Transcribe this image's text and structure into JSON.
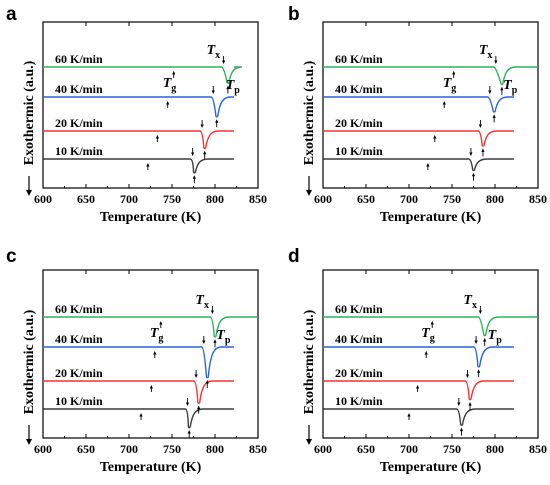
{
  "chart_data": [
    {
      "panel": "a",
      "type": "line",
      "xlabel": "Temperature (K)",
      "ylabel": "Exothermic (a.u.)",
      "xlim": [
        600,
        850
      ],
      "x_ticks": [
        600,
        650,
        700,
        750,
        800,
        850
      ],
      "series": [
        {
          "name": "10 K/min",
          "color": "#3a3a3a",
          "x_range": [
            600,
            822
          ],
          "level": 0,
          "Tg": 722,
          "Tx": 774,
          "Tp": 776,
          "peak_depth": 0.55
        },
        {
          "name": "20 K/min",
          "color": "#ff3030",
          "x_range": [
            600,
            822
          ],
          "level": 1,
          "Tg": 733,
          "Tx": 785,
          "Tp": 788,
          "peak_depth": 0.7
        },
        {
          "name": "40 K/min",
          "color": "#2a62d9",
          "x_range": [
            600,
            822
          ],
          "level": 2,
          "Tg": 745,
          "Tx": 798,
          "Tp": 802,
          "peak_depth": 0.8
        },
        {
          "name": "60 K/min",
          "color": "#2bb35a",
          "x_range": [
            600,
            822
          ],
          "level": 3,
          "Tg": 752,
          "Tx": 810,
          "Tp": 815,
          "peak_depth": 0.65
        }
      ],
      "annotations": {
        "tg_main": "T",
        "tg_sub": "g",
        "tx_main": "T",
        "tx_sub": "x",
        "tp_main": "T",
        "tp_sub": "p"
      }
    },
    {
      "panel": "b",
      "type": "line",
      "xlabel": "Temperature (K)",
      "ylabel": "Exothermic (a.u.)",
      "xlim": [
        600,
        850
      ],
      "x_ticks": [
        600,
        650,
        700,
        750,
        800,
        850
      ],
      "series": [
        {
          "name": "10 K/min",
          "color": "#3a3a3a",
          "x_range": [
            600,
            822
          ],
          "level": 0,
          "Tg": 722,
          "Tx": 772,
          "Tp": 775,
          "peak_depth": 0.45
        },
        {
          "name": "20 K/min",
          "color": "#ff3030",
          "x_range": [
            600,
            822
          ],
          "level": 1,
          "Tg": 730,
          "Tx": 783,
          "Tp": 786,
          "peak_depth": 0.6
        },
        {
          "name": "40 K/min",
          "color": "#2a62d9",
          "x_range": [
            600,
            822
          ],
          "level": 2,
          "Tg": 741,
          "Tx": 794,
          "Tp": 799,
          "peak_depth": 0.6
        },
        {
          "name": "60 K/min",
          "color": "#2bb35a",
          "x_range": [
            600,
            850
          ],
          "level": 3,
          "Tg": 752,
          "Tx": 801,
          "Tp": 808,
          "peak_depth": 0.7
        }
      ],
      "annotations": {
        "tg_main": "T",
        "tg_sub": "g",
        "tx_main": "T",
        "tx_sub": "x",
        "tp_main": "T",
        "tp_sub": "p"
      }
    },
    {
      "panel": "c",
      "type": "line",
      "xlabel": "Temperature (K)",
      "ylabel": "Exothermic (a.u.)",
      "xlim": [
        600,
        850
      ],
      "x_ticks": [
        600,
        650,
        700,
        750,
        800,
        850
      ],
      "series": [
        {
          "name": "10 K/min",
          "color": "#3a3a3a",
          "x_range": [
            600,
            822
          ],
          "level": 0,
          "Tg": 714,
          "Tx": 768,
          "Tp": 770,
          "peak_depth": 0.75
        },
        {
          "name": "20 K/min",
          "color": "#ff3030",
          "x_range": [
            600,
            822
          ],
          "level": 1,
          "Tg": 726,
          "Tx": 778,
          "Tp": 781,
          "peak_depth": 0.9
        },
        {
          "name": "40 K/min",
          "color": "#2a62d9",
          "x_range": [
            600,
            822
          ],
          "level": 2,
          "Tg": 730,
          "Tx": 787,
          "Tp": 791,
          "peak_depth": 1.25
        },
        {
          "name": "60 K/min",
          "color": "#2bb35a",
          "x_range": [
            600,
            850
          ],
          "level": 3,
          "Tg": 737,
          "Tx": 797,
          "Tp": 800,
          "peak_depth": 0.8
        }
      ],
      "annotations": {
        "tg_main": "T",
        "tg_sub": "g",
        "tx_main": "T",
        "tx_sub": "x",
        "tp_main": "T",
        "tp_sub": "p"
      }
    },
    {
      "panel": "d",
      "type": "line",
      "xlabel": "Temperature (K)",
      "ylabel": "Exothermic (a.u.)",
      "xlim": [
        600,
        850
      ],
      "x_ticks": [
        600,
        650,
        700,
        750,
        800,
        850
      ],
      "series": [
        {
          "name": "10 K/min",
          "color": "#3a3a3a",
          "x_range": [
            600,
            822
          ],
          "level": 0,
          "Tg": 700,
          "Tx": 758,
          "Tp": 761,
          "peak_depth": 0.65
        },
        {
          "name": "20 K/min",
          "color": "#ff3030",
          "x_range": [
            600,
            822
          ],
          "level": 1,
          "Tg": 710,
          "Tx": 768,
          "Tp": 771,
          "peak_depth": 0.75
        },
        {
          "name": "40 K/min",
          "color": "#2a62d9",
          "x_range": [
            600,
            822
          ],
          "level": 2,
          "Tg": 720,
          "Tx": 778,
          "Tp": 781,
          "peak_depth": 0.8
        },
        {
          "name": "60 K/min",
          "color": "#2bb35a",
          "x_range": [
            600,
            850
          ],
          "level": 3,
          "Tg": 727,
          "Tx": 783,
          "Tp": 788,
          "peak_depth": 0.75
        }
      ],
      "annotations": {
        "tg_main": "T",
        "tg_sub": "g",
        "tx_main": "T",
        "tx_sub": "x",
        "tp_main": "T",
        "tp_sub": "p"
      }
    }
  ]
}
